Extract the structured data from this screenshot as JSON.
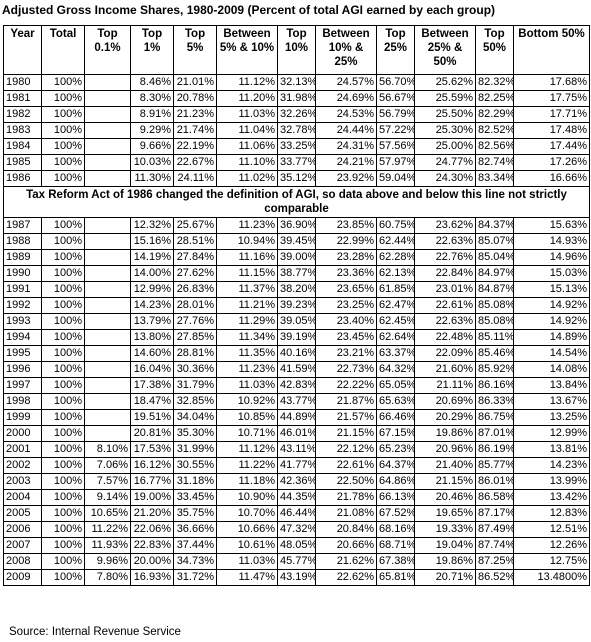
{
  "title": "Adjusted Gross Income Shares, 1980-2009 (Percent of total AGI earned by each group)",
  "headers": [
    "Year",
    "Total",
    "Top 0.1%",
    "Top 1%",
    "Top 5%",
    "Between 5% & 10%",
    "Top 10%",
    "Between 10% & 25%",
    "Top 25%",
    "Between 25% & 50%",
    "Top 50%",
    "Bottom 50%"
  ],
  "rows_before": [
    [
      "1980",
      "100%",
      "",
      "8.46%",
      "21.01%",
      "11.12%",
      "32.13%",
      "24.57%",
      "56.70%",
      "25.62%",
      "82.32%",
      "17.68%"
    ],
    [
      "1981",
      "100%",
      "",
      "8.30%",
      "20.78%",
      "11.20%",
      "31.98%",
      "24.69%",
      "56.67%",
      "25.59%",
      "82.25%",
      "17.75%"
    ],
    [
      "1982",
      "100%",
      "",
      "8.91%",
      "21.23%",
      "11.03%",
      "32.26%",
      "24.53%",
      "56.79%",
      "25.50%",
      "82.29%",
      "17.71%"
    ],
    [
      "1983",
      "100%",
      "",
      "9.29%",
      "21.74%",
      "11.04%",
      "32.78%",
      "24.44%",
      "57.22%",
      "25.30%",
      "82.52%",
      "17.48%"
    ],
    [
      "1984",
      "100%",
      "",
      "9.66%",
      "22.19%",
      "11.06%",
      "33.25%",
      "24.31%",
      "57.56%",
      "25.00%",
      "82.56%",
      "17.44%"
    ],
    [
      "1985",
      "100%",
      "",
      "10.03%",
      "22.67%",
      "11.10%",
      "33.77%",
      "24.21%",
      "57.97%",
      "24.77%",
      "82.74%",
      "17.26%"
    ],
    [
      "1986",
      "100%",
      "",
      "11.30%",
      "24.11%",
      "11.02%",
      "35.12%",
      "23.92%",
      "59.04%",
      "24.30%",
      "83.34%",
      "16.66%"
    ]
  ],
  "note": "Tax Reform Act of 1986 changed the definition of AGI, so data above and below this line not strictly comparable",
  "rows_after": [
    [
      "1987",
      "100%",
      "",
      "12.32%",
      "25.67%",
      "11.23%",
      "36.90%",
      "23.85%",
      "60.75%",
      "23.62%",
      "84.37%",
      "15.63%"
    ],
    [
      "1988",
      "100%",
      "",
      "15.16%",
      "28.51%",
      "10.94%",
      "39.45%",
      "22.99%",
      "62.44%",
      "22.63%",
      "85.07%",
      "14.93%"
    ],
    [
      "1989",
      "100%",
      "",
      "14.19%",
      "27.84%",
      "11.16%",
      "39.00%",
      "23.28%",
      "62.28%",
      "22.76%",
      "85.04%",
      "14.96%"
    ],
    [
      "1990",
      "100%",
      "",
      "14.00%",
      "27.62%",
      "11.15%",
      "38.77%",
      "23.36%",
      "62.13%",
      "22.84%",
      "84.97%",
      "15.03%"
    ],
    [
      "1991",
      "100%",
      "",
      "12.99%",
      "26.83%",
      "11.37%",
      "38.20%",
      "23.65%",
      "61.85%",
      "23.01%",
      "84.87%",
      "15.13%"
    ],
    [
      "1992",
      "100%",
      "",
      "14.23%",
      "28.01%",
      "11.21%",
      "39.23%",
      "23.25%",
      "62.47%",
      "22.61%",
      "85.08%",
      "14.92%"
    ],
    [
      "1993",
      "100%",
      "",
      "13.79%",
      "27.76%",
      "11.29%",
      "39.05%",
      "23.40%",
      "62.45%",
      "22.63%",
      "85.08%",
      "14.92%"
    ],
    [
      "1994",
      "100%",
      "",
      "13.80%",
      "27.85%",
      "11.34%",
      "39.19%",
      "23.45%",
      "62.64%",
      "22.48%",
      "85.11%",
      "14.89%"
    ],
    [
      "1995",
      "100%",
      "",
      "14.60%",
      "28.81%",
      "11.35%",
      "40.16%",
      "23.21%",
      "63.37%",
      "22.09%",
      "85.46%",
      "14.54%"
    ],
    [
      "1996",
      "100%",
      "",
      "16.04%",
      "30.36%",
      "11.23%",
      "41.59%",
      "22.73%",
      "64.32%",
      "21.60%",
      "85.92%",
      "14.08%"
    ],
    [
      "1997",
      "100%",
      "",
      "17.38%",
      "31.79%",
      "11.03%",
      "42.83%",
      "22.22%",
      "65.05%",
      "21.11%",
      "86.16%",
      "13.84%"
    ],
    [
      "1998",
      "100%",
      "",
      "18.47%",
      "32.85%",
      "10.92%",
      "43.77%",
      "21.87%",
      "65.63%",
      "20.69%",
      "86.33%",
      "13.67%"
    ],
    [
      "1999",
      "100%",
      "",
      "19.51%",
      "34.04%",
      "10.85%",
      "44.89%",
      "21.57%",
      "66.46%",
      "20.29%",
      "86.75%",
      "13.25%"
    ],
    [
      "2000",
      "100%",
      "",
      "20.81%",
      "35.30%",
      "10.71%",
      "46.01%",
      "21.15%",
      "67.15%",
      "19.86%",
      "87.01%",
      "12.99%"
    ],
    [
      "2001",
      "100%",
      "8.10%",
      "17.53%",
      "31.99%",
      "11.12%",
      "43.11%",
      "22.12%",
      "65.23%",
      "20.96%",
      "86.19%",
      "13.81%"
    ],
    [
      "2002",
      "100%",
      "7.06%",
      "16.12%",
      "30.55%",
      "11.22%",
      "41.77%",
      "22.61%",
      "64.37%",
      "21.40%",
      "85.77%",
      "14.23%"
    ],
    [
      "2003",
      "100%",
      "7.57%",
      "16.77%",
      "31.18%",
      "11.18%",
      "42.36%",
      "22.50%",
      "64.86%",
      "21.15%",
      "86.01%",
      "13.99%"
    ],
    [
      "2004",
      "100%",
      "9.14%",
      "19.00%",
      "33.45%",
      "10.90%",
      "44.35%",
      "21.78%",
      "66.13%",
      "20.46%",
      "86.58%",
      "13.42%"
    ],
    [
      "2005",
      "100%",
      "10.65%",
      "21.20%",
      "35.75%",
      "10.70%",
      "46.44%",
      "21.08%",
      "67.52%",
      "19.65%",
      "87.17%",
      "12.83%"
    ],
    [
      "2006",
      "100%",
      "11.22%",
      "22.06%",
      "36.66%",
      "10.66%",
      "47.32%",
      "20.84%",
      "68.16%",
      "19.33%",
      "87.49%",
      "12.51%"
    ],
    [
      "2007",
      "100%",
      "11.93%",
      "22.83%",
      "37.44%",
      "10.61%",
      "48.05%",
      "20.66%",
      "68.71%",
      "19.04%",
      "87.74%",
      "12.26%"
    ],
    [
      "2008",
      "100%",
      "9.96%",
      "20.00%",
      "34.73%",
      "11.03%",
      "45.77%",
      "21.62%",
      "67.38%",
      "19.86%",
      "87.25%",
      "12.75%"
    ],
    [
      "2009",
      "100%",
      "7.80%",
      "16.93%",
      "31.72%",
      "11.47%",
      "43.19%",
      "22.62%",
      "65.81%",
      "20.71%",
      "86.52%",
      "13.4800%"
    ]
  ],
  "source": "Source: Internal Revenue Service"
}
